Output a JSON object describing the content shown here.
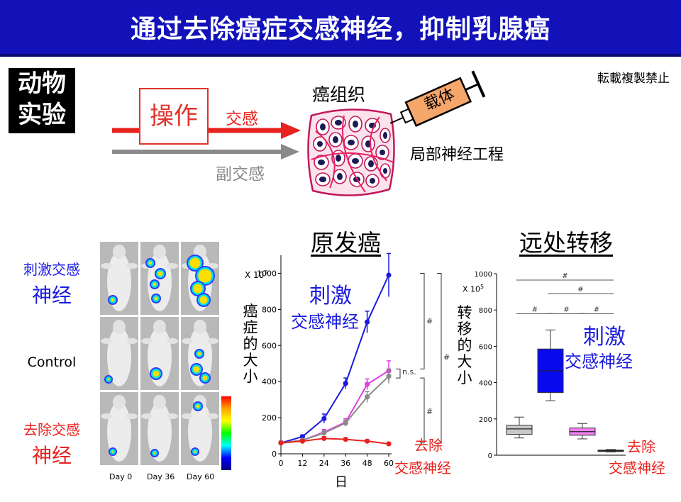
{
  "title": "通过去除癌症交感神经，抑制乳腺癌",
  "badge": {
    "line1": "动物",
    "line2": "实验"
  },
  "copyright": "転載複製禁止",
  "diagram": {
    "operation": "操作",
    "sympathetic": "交感",
    "parasympathetic": "副交感",
    "cancer_tissue": "癌组织",
    "carrier": "载体",
    "local_engineering": "局部神经工程"
  },
  "images": {
    "rows": [
      {
        "l1": "刺激交感",
        "l2": "神经",
        "color": "#1a1ae0"
      },
      {
        "l1": "Control",
        "l2": "",
        "color": "#000000"
      },
      {
        "l1": "去除交感",
        "l2": "神经",
        "color": "#e8221e"
      }
    ],
    "days": [
      "Day 0",
      "Day 36",
      "Day 60"
    ]
  },
  "primary": {
    "heading": "原发癌",
    "xlabel": "日",
    "ylabel_chars": [
      "癌",
      "症",
      "的",
      "大",
      "小"
    ],
    "scale_label": "X 10",
    "scale_exp": "5",
    "stim_l1": "刺激",
    "stim_l2": "交感神经",
    "remove_l1": "去除",
    "remove_l2": "交感神经",
    "ns": "n.s.",
    "hash": "#"
  },
  "metastasis": {
    "heading": "远处转移",
    "ylabel_chars": [
      "转",
      "移",
      "的",
      "大",
      "小"
    ],
    "scale_label": "X 10",
    "scale_exp": "5",
    "stim_l1": "刺激",
    "stim_l2": "交感神经",
    "remove_l1": "去除",
    "remove_l2": "交感神经",
    "hash": "#"
  },
  "chart_data": [
    {
      "type": "line",
      "title": "原发癌",
      "xlabel": "日",
      "ylabel": "癌症的大小",
      "x": [
        0,
        12,
        24,
        36,
        48,
        60
      ],
      "xticks": [
        "0",
        "12",
        "24",
        "36",
        "48",
        "60"
      ],
      "ylim": [
        0,
        1100
      ],
      "yticks": [
        "0",
        "200",
        "400",
        "600",
        "800",
        "1000"
      ],
      "series": [
        {
          "color": "#1a1ae0",
          "values": [
            60,
            95,
            195,
            390,
            730,
            990
          ],
          "err": [
            10,
            10,
            25,
            30,
            60,
            120
          ]
        },
        {
          "color": "#e040e0",
          "values": [
            60,
            75,
            120,
            175,
            385,
            460
          ],
          "err": [
            8,
            8,
            15,
            20,
            30,
            55
          ]
        },
        {
          "color": "#8a8a8a",
          "values": [
            60,
            75,
            115,
            170,
            315,
            430
          ],
          "err": [
            8,
            8,
            12,
            18,
            30,
            40
          ]
        },
        {
          "color": "#e8221e",
          "values": [
            60,
            70,
            85,
            80,
            70,
            55
          ],
          "err": [
            6,
            6,
            10,
            8,
            8,
            8
          ]
        }
      ]
    },
    {
      "type": "box",
      "title": "远处转移",
      "ylabel": "转移的大小",
      "ylim": [
        0,
        1000
      ],
      "yticks": [
        "0",
        "200",
        "400",
        "600",
        "800",
        "1000"
      ],
      "boxes": [
        {
          "color": "#c8c8c8",
          "min": 95,
          "q1": 115,
          "median": 145,
          "q3": 165,
          "max": 210
        },
        {
          "color": "#0a0aee",
          "min": 300,
          "q1": 345,
          "median": 465,
          "q3": 585,
          "max": 690
        },
        {
          "color": "#f080f0",
          "min": 90,
          "q1": 110,
          "median": 130,
          "q3": 150,
          "max": 175
        },
        {
          "color": "#8b1010",
          "min": 18,
          "q1": 22,
          "median": 25,
          "q3": 28,
          "max": 32
        }
      ]
    }
  ]
}
